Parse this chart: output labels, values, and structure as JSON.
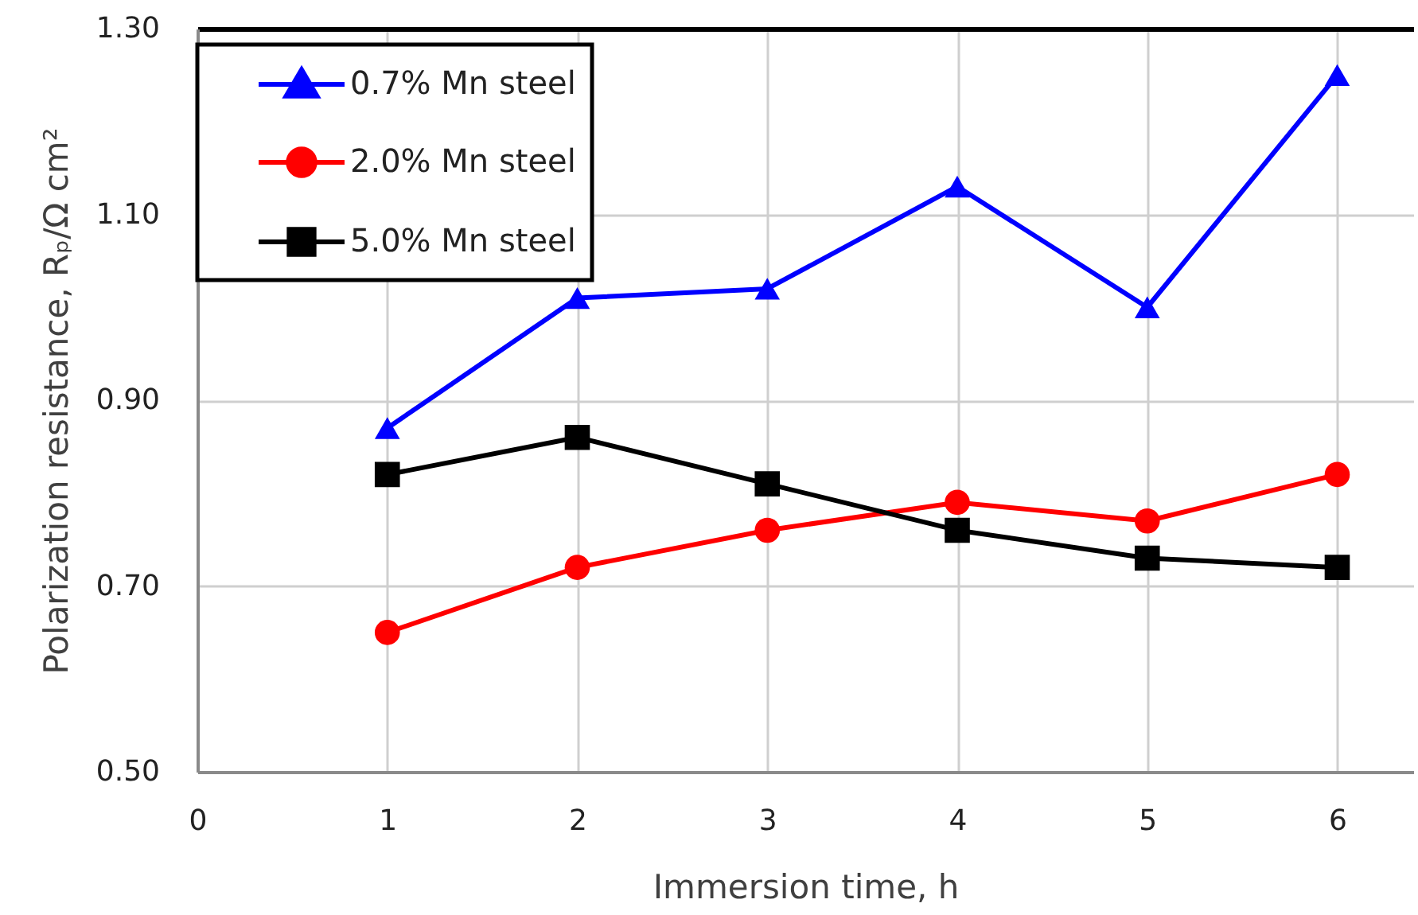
{
  "chart_data": {
    "type": "line",
    "xlabel": "Immersion time, h",
    "ylabel": "Polarization resistance, Rₚ/Ω cm²",
    "x": [
      1,
      2,
      3,
      4,
      5,
      6
    ],
    "series": [
      {
        "name": "0.7% Mn steel",
        "color": "#0000ff",
        "marker": "triangle",
        "values": [
          0.87,
          1.01,
          1.02,
          1.13,
          1.0,
          1.25
        ]
      },
      {
        "name": "2.0% Mn steel",
        "color": "#ff0000",
        "marker": "circle",
        "values": [
          0.65,
          0.72,
          0.76,
          0.79,
          0.77,
          0.82
        ]
      },
      {
        "name": "5.0% Mn steel",
        "color": "#000000",
        "marker": "square",
        "values": [
          0.82,
          0.86,
          0.81,
          0.76,
          0.73,
          0.72
        ]
      }
    ],
    "xlim": [
      0,
      6.4
    ],
    "xticks": [
      0,
      1,
      2,
      3,
      4,
      5,
      6
    ],
    "ylim": [
      0.5,
      1.3
    ],
    "yticks": [
      {
        "value": 0.5,
        "label": "0.50"
      },
      {
        "value": 0.7,
        "label": "0.70"
      },
      {
        "value": 0.9,
        "label": "0.90"
      },
      {
        "value": 1.1,
        "label": "1.10"
      },
      {
        "value": 1.3,
        "label": "1.30"
      }
    ],
    "grid": true,
    "legend": "top left",
    "line_style": "solid"
  }
}
